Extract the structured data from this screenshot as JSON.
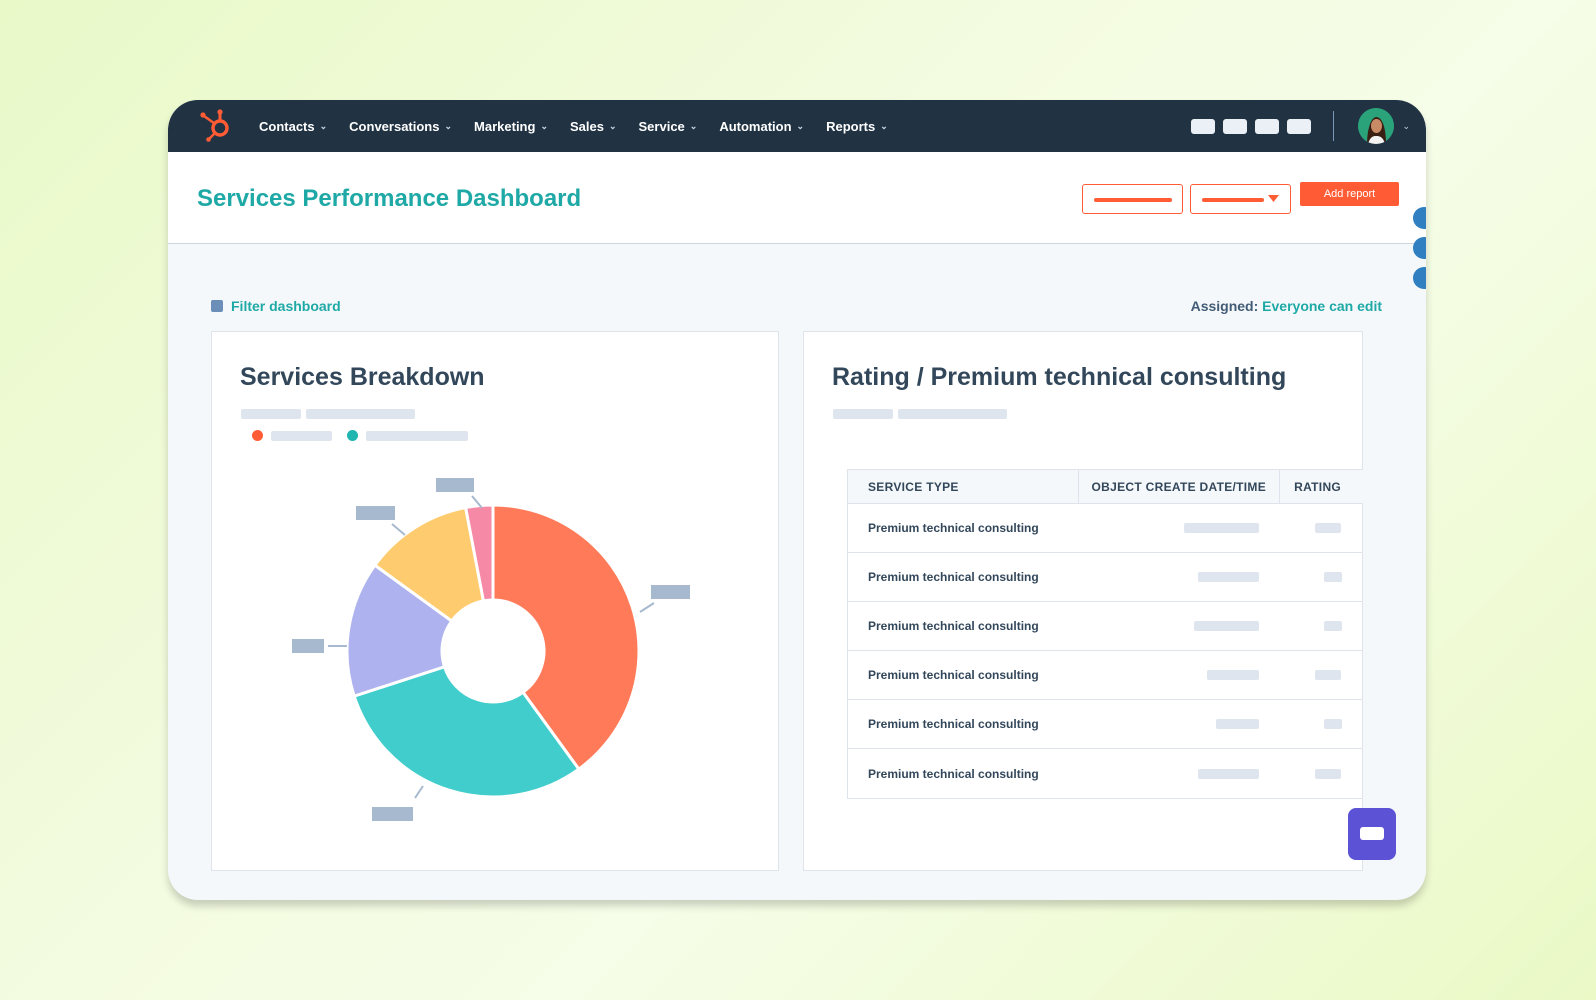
{
  "nav": {
    "items": [
      {
        "label": "Contacts"
      },
      {
        "label": "Conversations"
      },
      {
        "label": "Marketing"
      },
      {
        "label": "Sales"
      },
      {
        "label": "Service"
      },
      {
        "label": "Automation"
      },
      {
        "label": "Reports"
      }
    ]
  },
  "header": {
    "title": "Services Performance Dashboard",
    "add_report_label": "Add report"
  },
  "filter": {
    "label": "Filter dashboard"
  },
  "assigned": {
    "key": "Assigned:",
    "value": "Everyone can edit"
  },
  "breakdown_card": {
    "title": "Services Breakdown"
  },
  "rating_card": {
    "title": "Rating / Premium technical consulting",
    "columns": [
      "SERVICE TYPE",
      "OBJECT CREATE DATE/TIME",
      "RATING"
    ],
    "rows": [
      "Premium technical consulting",
      "Premium technical consulting",
      "Premium technical consulting",
      "Premium technical consulting",
      "Premium technical consulting",
      "Premium technical consulting"
    ]
  },
  "colors": {
    "nav_bg": "#213343",
    "accent_teal": "#1fa9a6",
    "accent_orange": "#ff5c35",
    "chat_purple": "#5b52d6"
  },
  "chart_data": {
    "type": "pie",
    "donut": true,
    "title": "Services Breakdown",
    "slices": [
      {
        "color": "#ff7a59",
        "value": 40
      },
      {
        "color": "#42cdcd",
        "value": 30
      },
      {
        "color": "#aeb2ee",
        "value": 15
      },
      {
        "color": "#fecb6f",
        "value": 12
      },
      {
        "color": "#f589a6",
        "value": 3
      }
    ]
  }
}
